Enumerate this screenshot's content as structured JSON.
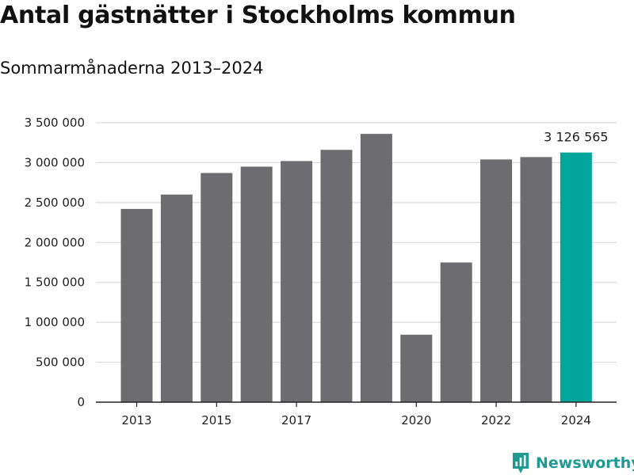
{
  "header": {
    "title": "Antal gästnätter i Stockholms kommun",
    "subtitle": "Sommarmånaderna 2013–2024"
  },
  "brand": {
    "name": "Newsworthy",
    "icon": "newsworthy-logo-icon",
    "color": "#1f9a93"
  },
  "chart_data": {
    "type": "bar",
    "title": "Antal gästnätter i Stockholms kommun",
    "subtitle": "Sommarmånaderna 2013–2024",
    "xlabel": "",
    "ylabel": "",
    "categories": [
      "2013",
      "2014",
      "2015",
      "2016",
      "2017",
      "2018",
      "2019",
      "2020",
      "2021",
      "2022",
      "2023",
      "2024"
    ],
    "x_tick_labels": [
      "2013",
      "2015",
      "2017",
      "2020",
      "2022",
      "2024"
    ],
    "values": [
      2420000,
      2600000,
      2870000,
      2950000,
      3020000,
      3160000,
      3360000,
      845000,
      1750000,
      3040000,
      3070000,
      3126565
    ],
    "ylim": [
      0,
      3500000
    ],
    "y_ticks": [
      0,
      500000,
      1000000,
      1500000,
      2000000,
      2500000,
      3000000,
      3500000
    ],
    "y_tick_labels": [
      "0",
      "500 000",
      "1 000 000",
      "1 500 000",
      "2 000 000",
      "2 500 000",
      "3 000 000",
      "3 500 000"
    ],
    "grid": true,
    "bar_color": "#6d6c71",
    "highlight_color": "#00a69c",
    "highlight_category": "2024",
    "annotation": {
      "category": "2024",
      "text": "3 126 565"
    }
  }
}
